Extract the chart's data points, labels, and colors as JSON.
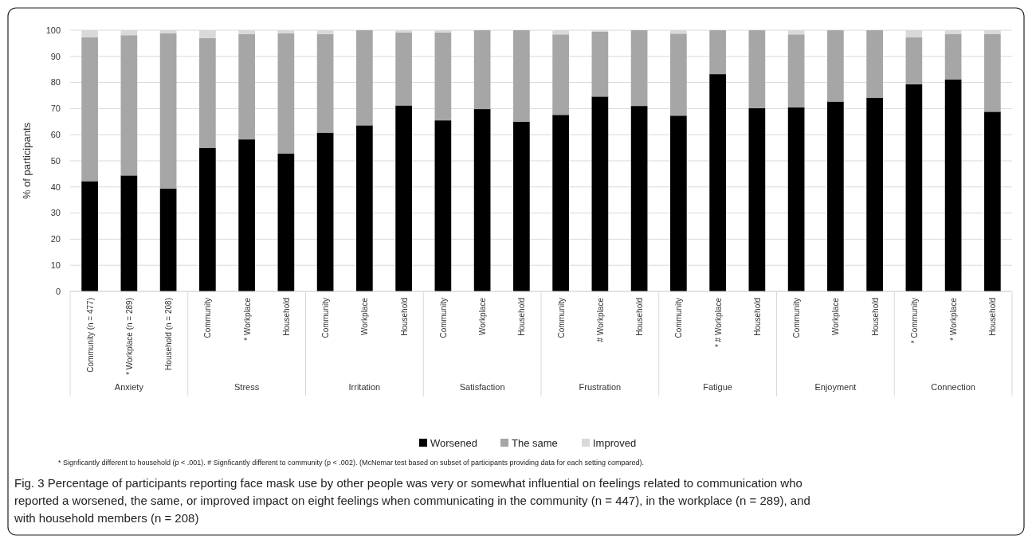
{
  "chart_data": {
    "type": "bar",
    "stacked": true,
    "ylabel": "% of participants",
    "ylim": [
      0,
      100
    ],
    "yticks": [
      0,
      10,
      20,
      30,
      40,
      50,
      60,
      70,
      80,
      90,
      100
    ],
    "grid": "y",
    "legend": "bottom",
    "categories": [
      "Community (n = 477)",
      "* Workplace (n = 289)",
      "Household (n = 208)",
      "Community",
      "* Workplace",
      "Household",
      "Community",
      "Workplace",
      "Household",
      "Community",
      "Workplace",
      "Household",
      "Community",
      "# Workplace",
      "Household",
      "Community",
      "* # Workplace",
      "Household",
      "Community",
      "Workplace",
      "Household",
      "* Community",
      "* Workplace",
      "Household"
    ],
    "series": [
      {
        "name": "Worsened",
        "color": "#000000",
        "values": [
          42.2,
          44.4,
          39.4,
          55,
          58.2,
          52.8,
          60.8,
          63.6,
          71.2,
          65.5,
          69.8,
          65,
          67.6,
          74.6,
          71,
          67.3,
          83.2,
          70.2,
          70.5,
          72.7,
          74.2,
          79.3,
          81.1,
          68.8
        ]
      },
      {
        "name": "The same",
        "color": "#a6a6a6",
        "values": [
          55.1,
          53.7,
          59.4,
          42,
          40.3,
          46,
          37.7,
          36.4,
          28,
          33.7,
          30.2,
          35,
          30.8,
          24.8,
          29,
          31.4,
          16.8,
          29.8,
          27.9,
          27.3,
          25.8,
          18,
          17.5,
          29.8
        ]
      },
      {
        "name": "Improved",
        "color": "#d9d9d9",
        "values": [
          2.7,
          1.9,
          1.2,
          3,
          1.5,
          1.2,
          1.5,
          0,
          0.8,
          0.8,
          0,
          0,
          1.6,
          0.6,
          0,
          1.3,
          0,
          0,
          1.6,
          0,
          0,
          2.7,
          1.4,
          1.4
        ]
      }
    ],
    "annotations": [
      "Anxiety",
      "Stress",
      "Irritation",
      "Satisfaction",
      "Frustration",
      "Fatigue",
      "Enjoyment",
      "Connection",
      "* Signficantly different to household (p < .001). # Signficantly different to community (p < .002). (McNemar test based on subset of participants providing data for each setting compared).",
      "Fig. 3 Percentage of participants reporting face mask use by other people was very or somewhat influential on feelings related to communication who reported a worsened, the same, or improved impact on eight feelings when communicating in the community (n = 447), in the workplace (n = 289), and with household members (n = 208)"
    ]
  }
}
